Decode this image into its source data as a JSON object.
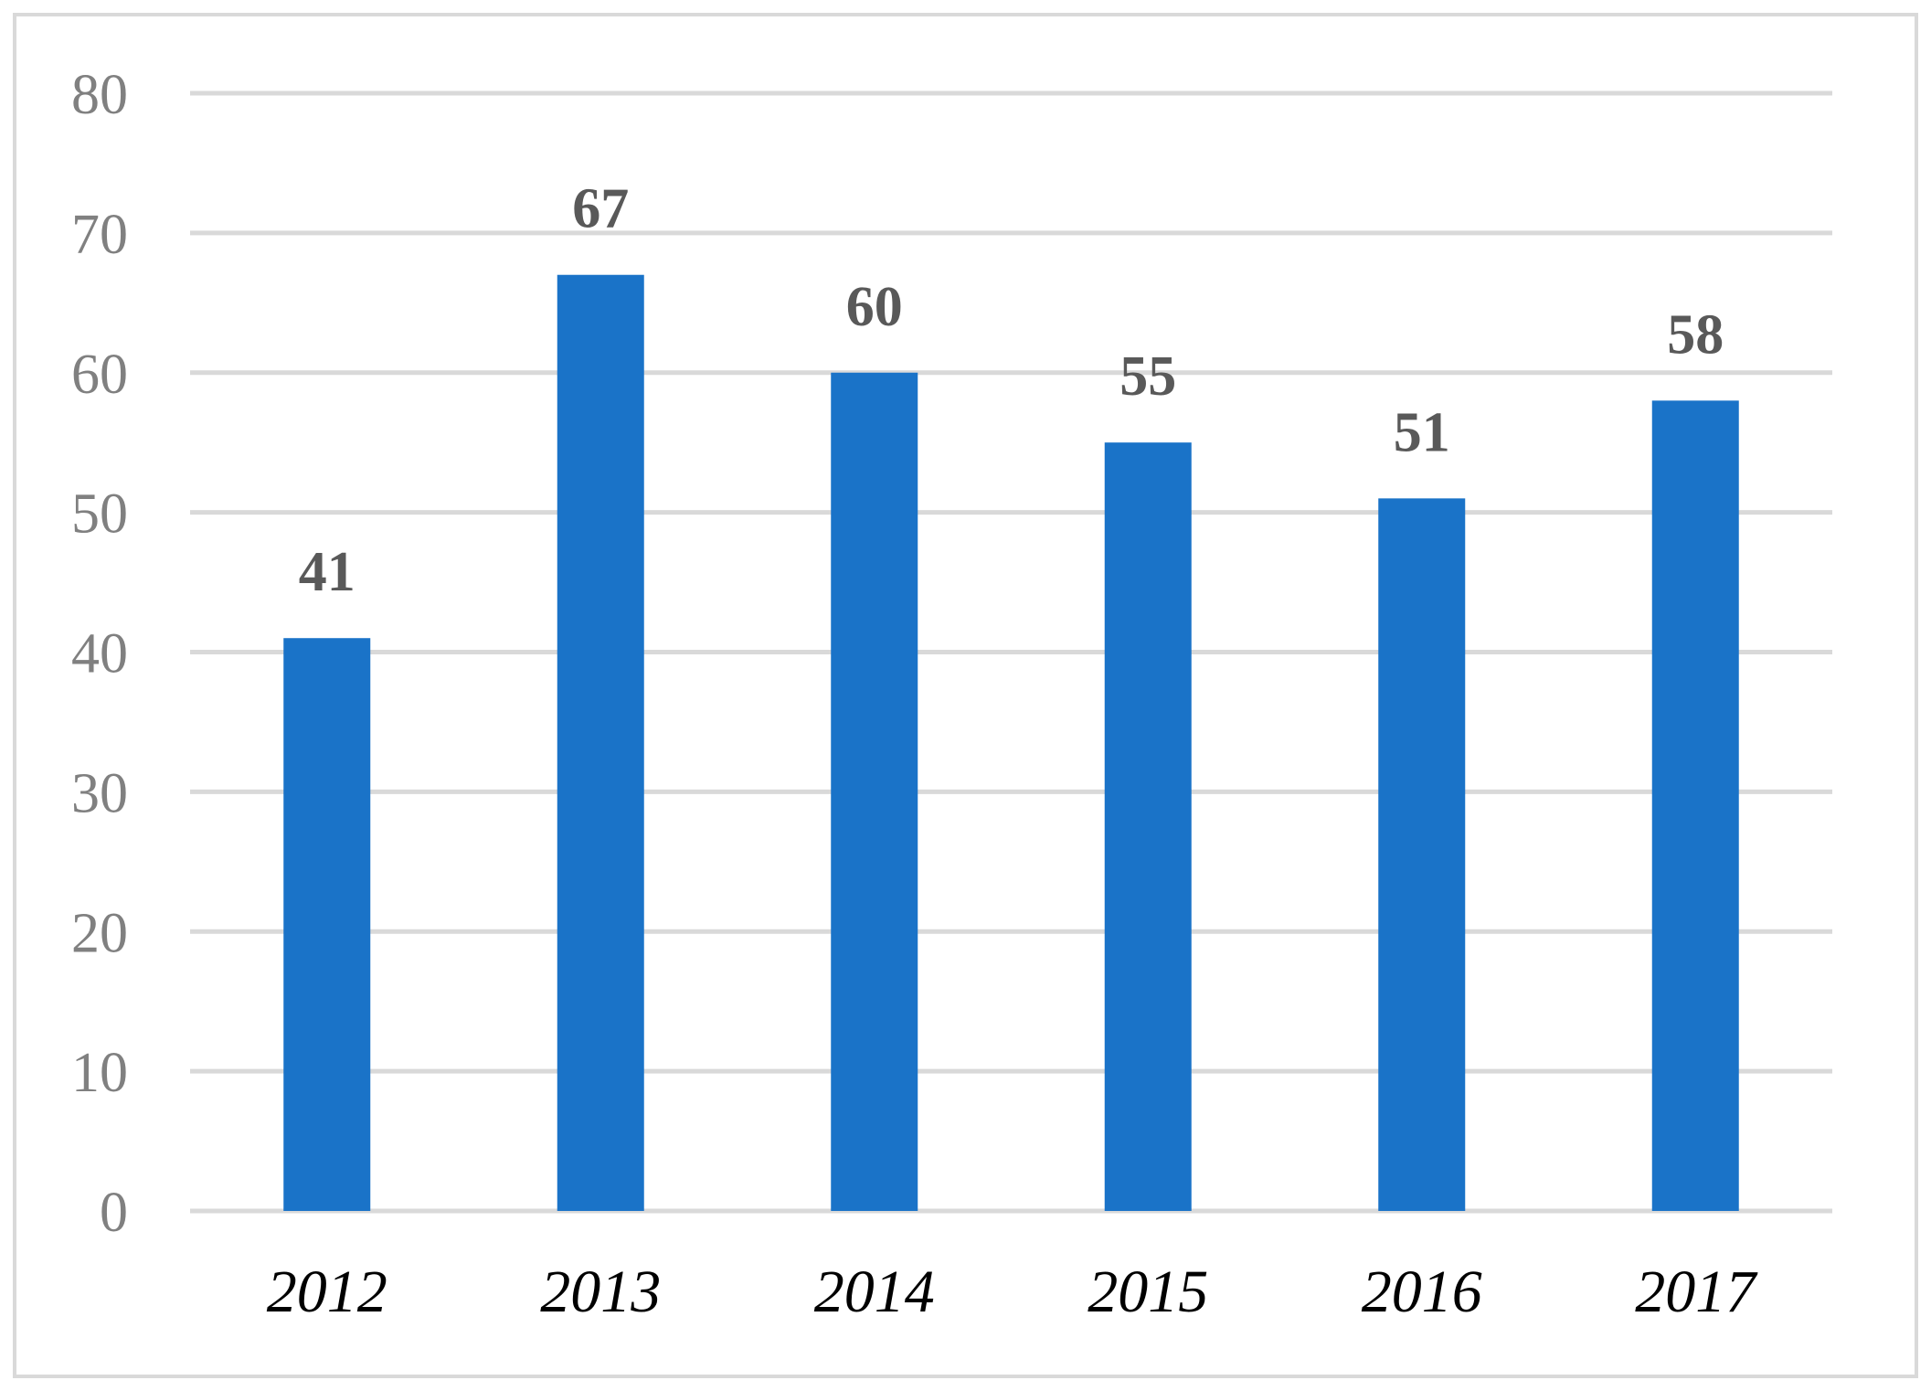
{
  "chart_data": {
    "type": "bar",
    "categories": [
      "2012",
      "2013",
      "2014",
      "2015",
      "2016",
      "2017"
    ],
    "values": [
      41,
      67,
      60,
      55,
      51,
      58
    ],
    "data_labels": [
      "41",
      "67",
      "60",
      "55",
      "51",
      "58"
    ],
    "yticks": [
      "0",
      "10",
      "20",
      "30",
      "40",
      "50",
      "60",
      "70",
      "80"
    ],
    "ylim": [
      0,
      80
    ],
    "ytick_step": 10,
    "title": "",
    "xlabel": "",
    "ylabel": "",
    "grid": true,
    "legend": "none",
    "colors": {
      "bar": "#1a73c8",
      "grid": "#d9d9d9",
      "ytick": "#808080",
      "xtick": "#000000",
      "data_label": "#595959",
      "border": "#d9d9d9"
    }
  }
}
